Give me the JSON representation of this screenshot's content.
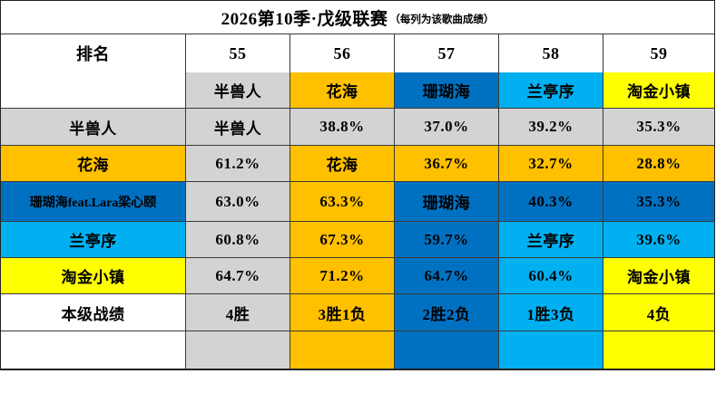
{
  "title": {
    "main": "2026第10季·戊级联赛",
    "note": "（每列为该歌曲成绩）"
  },
  "colors": {
    "gray": "#d3d3d3",
    "orange": "#ffc000",
    "blue": "#0071c1",
    "lightblue": "#00b0f0",
    "yellow": "#ffff00",
    "white": "#ffffff"
  },
  "header": {
    "rank_label": "排名",
    "columns": [
      "55",
      "56",
      "57",
      "58",
      "59"
    ]
  },
  "table": {
    "rows": [
      {
        "label": {
          "text": "",
          "color": "white"
        },
        "cells": [
          {
            "text": "半兽人",
            "color": "gray"
          },
          {
            "text": "花海",
            "color": "orange"
          },
          {
            "text": "珊瑚海",
            "color": "blue"
          },
          {
            "text": "兰亭序",
            "color": "lightblue"
          },
          {
            "text": "淘金小镇",
            "color": "yellow"
          }
        ]
      },
      {
        "label": {
          "text": "半兽人",
          "color": "gray"
        },
        "cells": [
          {
            "text": "半兽人",
            "color": "gray"
          },
          {
            "text": "38.8%",
            "color": "gray"
          },
          {
            "text": "37.0%",
            "color": "gray"
          },
          {
            "text": "39.2%",
            "color": "gray"
          },
          {
            "text": "35.3%",
            "color": "gray"
          }
        ]
      },
      {
        "label": {
          "text": "花海",
          "color": "orange"
        },
        "cells": [
          {
            "text": "61.2%",
            "color": "gray"
          },
          {
            "text": "花海",
            "color": "orange"
          },
          {
            "text": "36.7%",
            "color": "orange"
          },
          {
            "text": "32.7%",
            "color": "orange"
          },
          {
            "text": "28.8%",
            "color": "orange"
          }
        ]
      },
      {
        "label": {
          "text": "珊瑚海feat.Lara梁心颐",
          "color": "blue"
        },
        "cells": [
          {
            "text": "63.0%",
            "color": "gray"
          },
          {
            "text": "63.3%",
            "color": "orange"
          },
          {
            "text": "珊瑚海",
            "color": "blue"
          },
          {
            "text": "40.3%",
            "color": "blue"
          },
          {
            "text": "35.3%",
            "color": "blue"
          }
        ]
      },
      {
        "label": {
          "text": "兰亭序",
          "color": "lightblue"
        },
        "cells": [
          {
            "text": "60.8%",
            "color": "gray"
          },
          {
            "text": "67.3%",
            "color": "orange"
          },
          {
            "text": "59.7%",
            "color": "blue"
          },
          {
            "text": "兰亭序",
            "color": "lightblue"
          },
          {
            "text": "39.6%",
            "color": "lightblue"
          }
        ]
      },
      {
        "label": {
          "text": "淘金小镇",
          "color": "yellow"
        },
        "cells": [
          {
            "text": "64.7%",
            "color": "gray"
          },
          {
            "text": "71.2%",
            "color": "orange"
          },
          {
            "text": "64.7%",
            "color": "blue"
          },
          {
            "text": "60.4%",
            "color": "lightblue"
          },
          {
            "text": "淘金小镇",
            "color": "yellow"
          }
        ]
      },
      {
        "label": {
          "text": "本级战绩",
          "color": "white"
        },
        "cells": [
          {
            "text": "4胜",
            "color": "gray"
          },
          {
            "text": "3胜1负",
            "color": "orange"
          },
          {
            "text": "2胜2负",
            "color": "blue"
          },
          {
            "text": "1胜3负",
            "color": "lightblue"
          },
          {
            "text": "4负",
            "color": "yellow"
          }
        ]
      },
      {
        "label": {
          "text": "",
          "color": "white"
        },
        "cells": [
          {
            "text": "",
            "color": "gray"
          },
          {
            "text": "",
            "color": "orange"
          },
          {
            "text": "",
            "color": "blue"
          },
          {
            "text": "",
            "color": "lightblue"
          },
          {
            "text": "",
            "color": "yellow"
          }
        ]
      }
    ]
  },
  "chart_data": {
    "type": "table",
    "title": "2026第10季·戊级联赛（每列为该歌曲成绩）",
    "columns": [
      "排名",
      "55",
      "56",
      "57",
      "58",
      "59"
    ],
    "column_songs": [
      "半兽人",
      "花海",
      "珊瑚海",
      "兰亭序",
      "淘金小镇"
    ],
    "rows": [
      [
        "半兽人",
        "半兽人",
        "38.8%",
        "37.0%",
        "39.2%",
        "35.3%"
      ],
      [
        "花海",
        "61.2%",
        "花海",
        "36.7%",
        "32.7%",
        "28.8%"
      ],
      [
        "珊瑚海feat.Lara梁心颐",
        "63.0%",
        "63.3%",
        "珊瑚海",
        "40.3%",
        "35.3%"
      ],
      [
        "兰亭序",
        "60.8%",
        "67.3%",
        "59.7%",
        "兰亭序",
        "39.6%"
      ],
      [
        "淘金小镇",
        "64.7%",
        "71.2%",
        "64.7%",
        "60.4%",
        "淘金小镇"
      ],
      [
        "本级战绩",
        "4胜",
        "3胜1负",
        "2胜2负",
        "1胜3负",
        "4负"
      ]
    ],
    "legend_colors": {
      "半兽人": "#d3d3d3",
      "花海": "#ffc000",
      "珊瑚海": "#0071c1",
      "兰亭序": "#00b0f0",
      "淘金小镇": "#ffff00"
    }
  }
}
